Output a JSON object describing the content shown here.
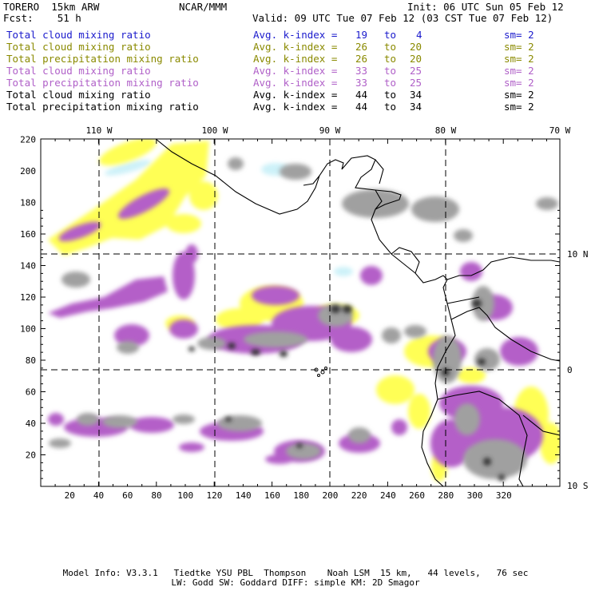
{
  "header": {
    "model": "TORERO  15km ARW",
    "center": "NCAR/MMM",
    "init": "Init: 06 UTC Sun 05 Feb 12",
    "fcst": "Fcst:    51 h",
    "valid": "Valid: 09 UTC Tue 07 Feb 12 (03 CST Tue 07 Feb 12)"
  },
  "legend": [
    {
      "field": "Total cloud mixing ratio",
      "kindex": "Avg. k-index =",
      "from": "19",
      "to": "4",
      "sm": "sm= 2",
      "color": "#1a1acc"
    },
    {
      "field": "Total cloud mixing ratio",
      "kindex": "Avg. k-index =",
      "from": "26",
      "to": "20",
      "sm": "sm= 2",
      "color": "#8a8a00"
    },
    {
      "field": "Total precipitation mixing ratio",
      "kindex": "Avg. k-index =",
      "from": "26",
      "to": "20",
      "sm": "sm= 2",
      "color": "#8a8a00"
    },
    {
      "field": "Total cloud mixing ratio",
      "kindex": "Avg. k-index =",
      "from": "33",
      "to": "25",
      "sm": "sm= 2",
      "color": "#b060c8"
    },
    {
      "field": "Total precipitation mixing ratio",
      "kindex": "Avg. k-index =",
      "from": "33",
      "to": "25",
      "sm": "sm= 2",
      "color": "#b060c8"
    },
    {
      "field": "Total cloud mixing ratio",
      "kindex": "Avg. k-index =",
      "from": "44",
      "to": "34",
      "sm": "sm= 2",
      "color": "#000000"
    },
    {
      "field": "Total precipitation mixing ratio",
      "kindex": "Avg. k-index =",
      "from": "44",
      "to": "34",
      "sm": "sm= 2",
      "color": "#000000"
    }
  ],
  "to_word": "to",
  "map": {
    "top_labels": [
      "110 W",
      "100 W",
      "90 W",
      "80 W",
      "70 W"
    ],
    "right_labels": [
      "10 N",
      "0",
      "10 S"
    ],
    "left_ticks": [
      "20",
      "40",
      "60",
      "80",
      "100",
      "120",
      "140",
      "160",
      "180",
      "200",
      "220"
    ],
    "bottom_ticks": [
      "20",
      "40",
      "60",
      "80",
      "100",
      "120",
      "140",
      "160",
      "180",
      "200",
      "220",
      "240",
      "260",
      "280",
      "300",
      "320"
    ],
    "colors": {
      "yellow": "#ffff55",
      "violet": "#b45fc8",
      "gray": "#a0a0a0",
      "dark": "#303030",
      "cyan": "#c8f0f8"
    }
  },
  "footer": {
    "line1": "Model Info: V3.3.1   Tiedtke YSU PBL  Thompson    Noah LSM  15 km,   44 levels,   76 sec",
    "line2": "LW: Godd SW: Goddard DIFF: simple KM: 2D Smagor"
  }
}
